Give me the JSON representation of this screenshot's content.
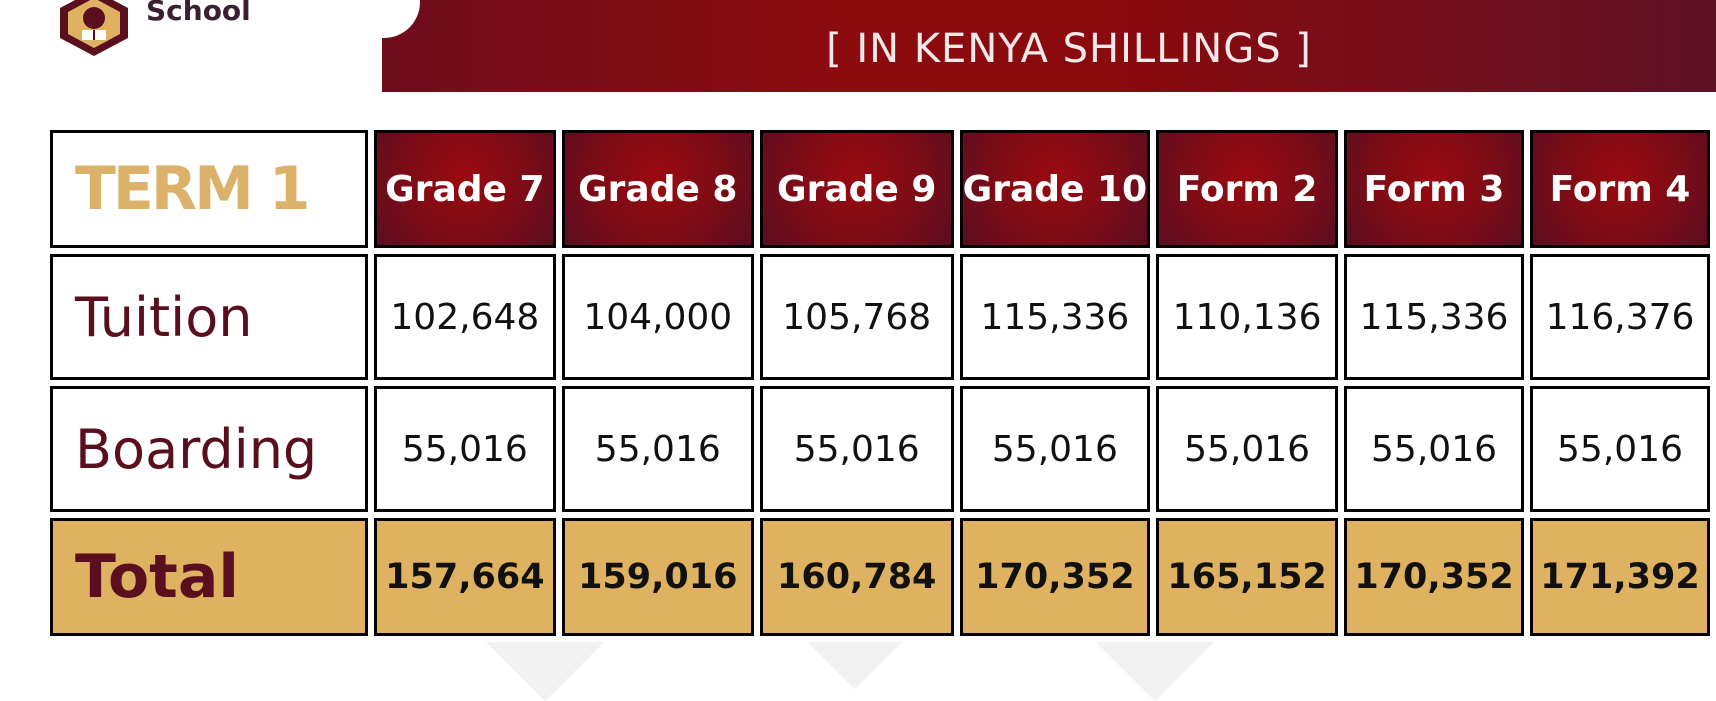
{
  "header": {
    "school_word": "School",
    "currency_note": "[ IN KENYA SHILLINGS ]"
  },
  "table": {
    "term_label": "TERM 1",
    "columns": [
      "Grade 7",
      "Grade 8",
      "Grade 9",
      "Grade 10",
      "Form 2",
      "Form 3",
      "Form 4"
    ],
    "rows": [
      {
        "label": "Tuition",
        "values": [
          "102,648",
          "104,000",
          "105,768",
          "115,336",
          "110,136",
          "115,336",
          "116,376"
        ]
      },
      {
        "label": "Boarding",
        "values": [
          "55,016",
          "55,016",
          "55,016",
          "55,016",
          "55,016",
          "55,016",
          "55,016"
        ]
      }
    ],
    "total": {
      "label": "Total",
      "values": [
        "157,664",
        "159,016",
        "160,784",
        "170,352",
        "165,152",
        "170,352",
        "171,392"
      ]
    }
  },
  "colors": {
    "maroon": "#8c0b0f",
    "gold": "#dfb262",
    "term_text": "#dcb26a",
    "label_text": "#5a0f1e"
  }
}
